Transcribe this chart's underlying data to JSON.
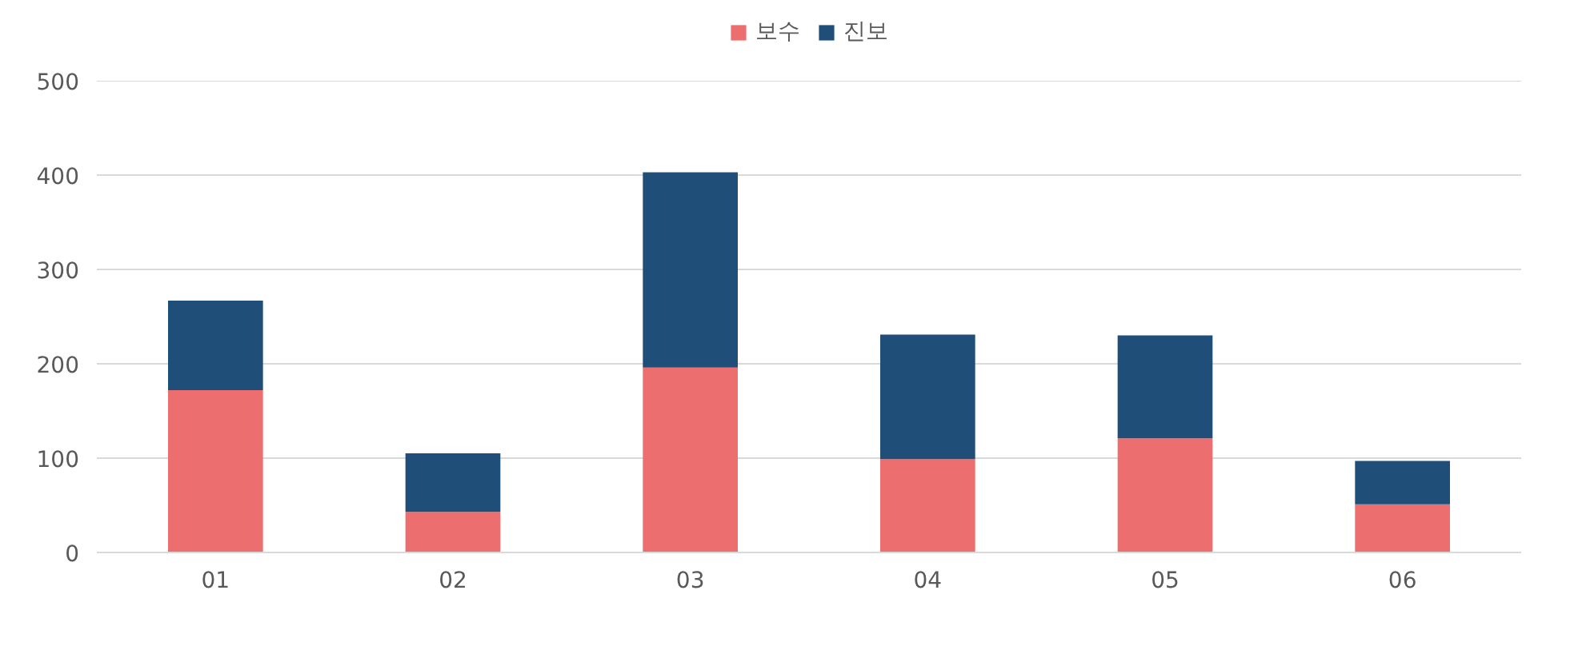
{
  "chart_data": {
    "type": "bar",
    "stacked": true,
    "categories": [
      "01",
      "02",
      "03",
      "04",
      "05",
      "06"
    ],
    "series": [
      {
        "name": "보수",
        "color": "#ed6e6e",
        "values": [
          172,
          43,
          196,
          99,
          121,
          51
        ]
      },
      {
        "name": "진보",
        "color": "#1f4e79",
        "values": [
          95,
          62,
          207,
          132,
          109,
          46
        ]
      }
    ],
    "ylim": [
      0,
      500
    ],
    "yticks": [
      0,
      100,
      200,
      300,
      400,
      500
    ],
    "grid": "y",
    "legend": "top"
  }
}
